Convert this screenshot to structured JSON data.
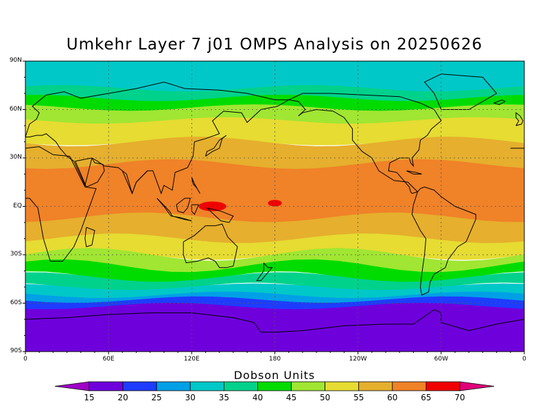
{
  "title": "Umkehr Layer 7 j01 OMPS Analysis on 20250626",
  "units_label": "Dobson Units",
  "lat_labels": [
    "90N",
    "60N",
    "30N",
    "EQ",
    "30S",
    "60S",
    "90S"
  ],
  "lon_labels": [
    "0",
    "60E",
    "120E",
    "180",
    "120W",
    "60W",
    "0"
  ],
  "colorbar": {
    "levels": [
      15,
      20,
      25,
      30,
      35,
      40,
      45,
      50,
      55,
      60,
      65,
      70
    ],
    "colors": [
      "#a000c8",
      "#6e00dc",
      "#1e3cff",
      "#00a0e6",
      "#00c8c8",
      "#00d28c",
      "#00dc00",
      "#a0e632",
      "#e6dc32",
      "#e6af2d",
      "#f08228",
      "#f00000",
      "#e0007a"
    ]
  },
  "map_colors": {
    "purple": "#6e00dc",
    "blue": "#1e3cff",
    "light_blue": "#00a0e6",
    "cyan": "#00c8c8",
    "teal": "#00d28c",
    "green": "#00dc00",
    "yellow_green": "#a0e632",
    "yellow": "#e6dc32",
    "gold": "#e6af2d",
    "orange": "#f08228",
    "red": "#f00000"
  }
}
